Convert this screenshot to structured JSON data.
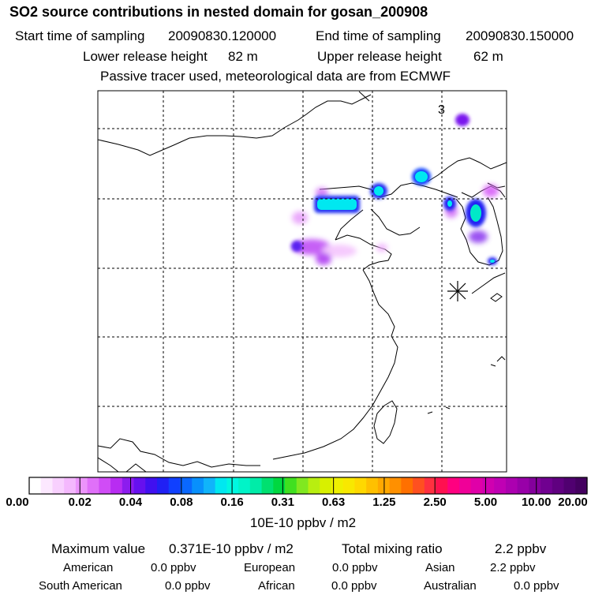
{
  "title": "SO2 source contributions in nested domain for gosan_200908",
  "sampling": {
    "start_label": "Start time of sampling",
    "start_value": "20090830.120000",
    "end_label": "End time of sampling",
    "end_value": "20090830.150000"
  },
  "release": {
    "lower_label": "Lower release height",
    "lower_value": "82 m",
    "upper_label": "Upper release height",
    "upper_value": "62 m"
  },
  "note": "Passive tracer used, meteorological data are from ECMWF",
  "map": {
    "marker_label": "3",
    "receptor_symbol": "asterisk"
  },
  "colorbar": {
    "ticks": [
      "0.00",
      "0.02",
      "0.04",
      "0.08",
      "0.16",
      "0.31",
      "0.63",
      "1.25",
      "2.50",
      "5.00",
      "10.00",
      "20.00"
    ],
    "colors": [
      "#ffffff",
      "#fce8ff",
      "#f8d0fe",
      "#f4b8fd",
      "#ec94fb",
      "#e070f9",
      "#d04cf6",
      "#b82cf2",
      "#8c1cee",
      "#6610ee",
      "#4010f0",
      "#2020f4",
      "#1040ff",
      "#0a68fe",
      "#0890fc",
      "#10b4fa",
      "#00e8f0",
      "#00f8e0",
      "#00f4c8",
      "#00eca8",
      "#00e070",
      "#00d840",
      "#40e020",
      "#80e820",
      "#b8ee10",
      "#d8f000",
      "#eef000",
      "#f8e800",
      "#ffd800",
      "#ffc000",
      "#ffa800",
      "#ff9000",
      "#ff7000",
      "#ff5020",
      "#ff3040",
      "#ff1050",
      "#ff0080",
      "#f00098",
      "#e000a8",
      "#d000b0",
      "#c000b4",
      "#ac00b0",
      "#9800a8",
      "#84009c",
      "#700090",
      "#600080",
      "#500070",
      "#440060"
    ],
    "units": "10E-10 ppbv / m2"
  },
  "summary": {
    "max_label": "Maximum value",
    "max_value": "0.371E-10 ppbv / m2",
    "total_label": "Total mixing ratio",
    "total_value": "2.2 ppbv",
    "regions": [
      {
        "name": "American",
        "value": "0.0 ppbv"
      },
      {
        "name": "European",
        "value": "0.0 ppbv"
      },
      {
        "name": "Asian",
        "value": "2.2 ppbv"
      },
      {
        "name": "South American",
        "value": "0.0 ppbv"
      },
      {
        "name": "African",
        "value": "0.0 ppbv"
      },
      {
        "name": "Australian",
        "value": "0.0 ppbv"
      }
    ]
  }
}
